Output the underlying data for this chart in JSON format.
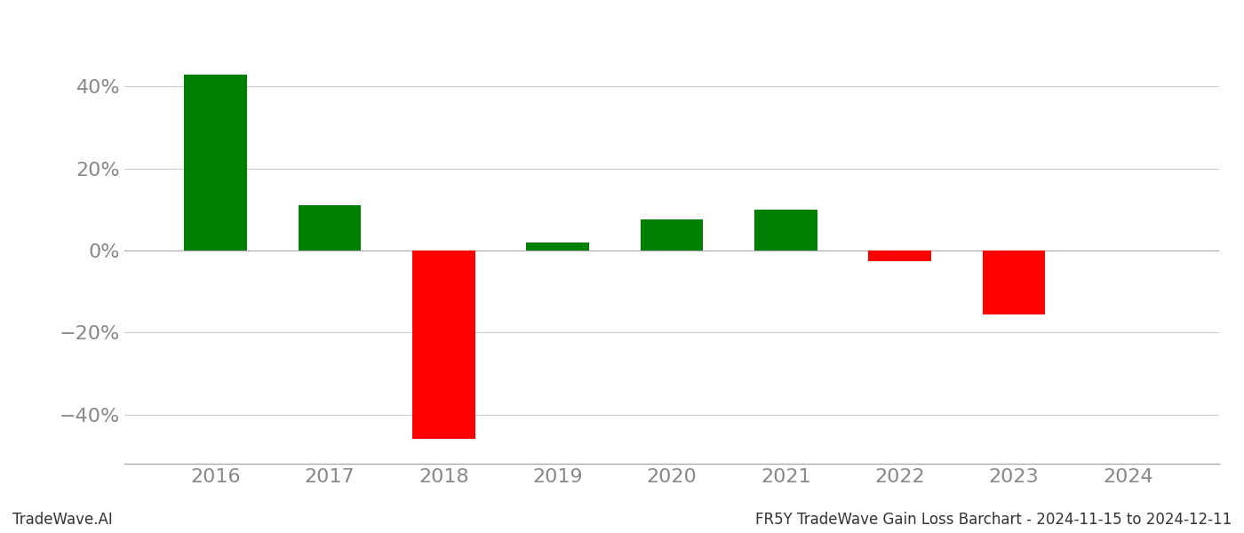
{
  "years": [
    2016,
    2017,
    2018,
    2019,
    2020,
    2021,
    2022,
    2023,
    2024
  ],
  "values": [
    0.43,
    0.11,
    -0.46,
    0.02,
    0.075,
    0.1,
    -0.025,
    -0.155,
    0.0
  ],
  "colors": [
    "#008000",
    "#008000",
    "#ff0000",
    "#008000",
    "#008000",
    "#008000",
    "#ff0000",
    "#ff0000",
    "#008000"
  ],
  "ylim": [
    -0.52,
    0.52
  ],
  "yticks": [
    -0.4,
    -0.2,
    0.0,
    0.2,
    0.4
  ],
  "ylabel": "",
  "xlabel": "",
  "footer_left": "TradeWave.AI",
  "footer_right": "FR5Y TradeWave Gain Loss Barchart - 2024-11-15 to 2024-12-11",
  "background_color": "#ffffff",
  "bar_width": 0.55,
  "grid_color": "#cccccc",
  "axis_color": "#aaaaaa",
  "text_color": "#888888",
  "footer_fontsize": 12,
  "tick_fontsize": 16
}
